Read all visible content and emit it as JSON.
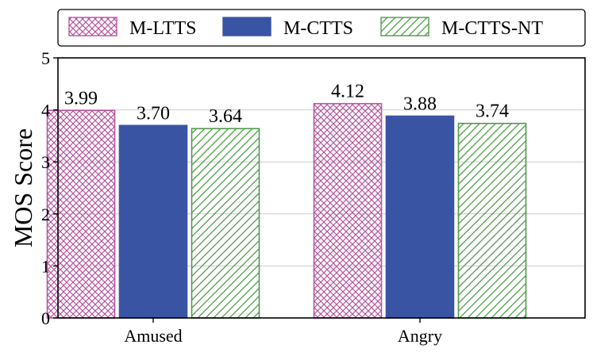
{
  "chart_data": {
    "type": "bar",
    "categories": [
      "Amused",
      "Angry"
    ],
    "series": [
      {
        "name": "M-LTTS",
        "values": [
          3.99,
          4.12
        ],
        "value_labels": [
          "3.99",
          "4.12"
        ],
        "color": "#b5569f",
        "fill": "crosshatch"
      },
      {
        "name": "M-CTTS",
        "values": [
          3.7,
          3.88
        ],
        "value_labels": [
          "3.70",
          "3.88"
        ],
        "color": "#3a54a4",
        "fill": "solid"
      },
      {
        "name": "M-CTTS-NT",
        "values": [
          3.64,
          3.74
        ],
        "value_labels": [
          "3.64",
          "3.74"
        ],
        "color": "#4f9a4a",
        "fill": "diagonal-hatch"
      }
    ],
    "ylabel": "MOS Score",
    "xlabel": "",
    "title": "",
    "ylim": [
      0,
      5
    ],
    "yticks": [
      0,
      1,
      2,
      3,
      4,
      5
    ],
    "grid": "y-major",
    "legend_position": "top"
  }
}
